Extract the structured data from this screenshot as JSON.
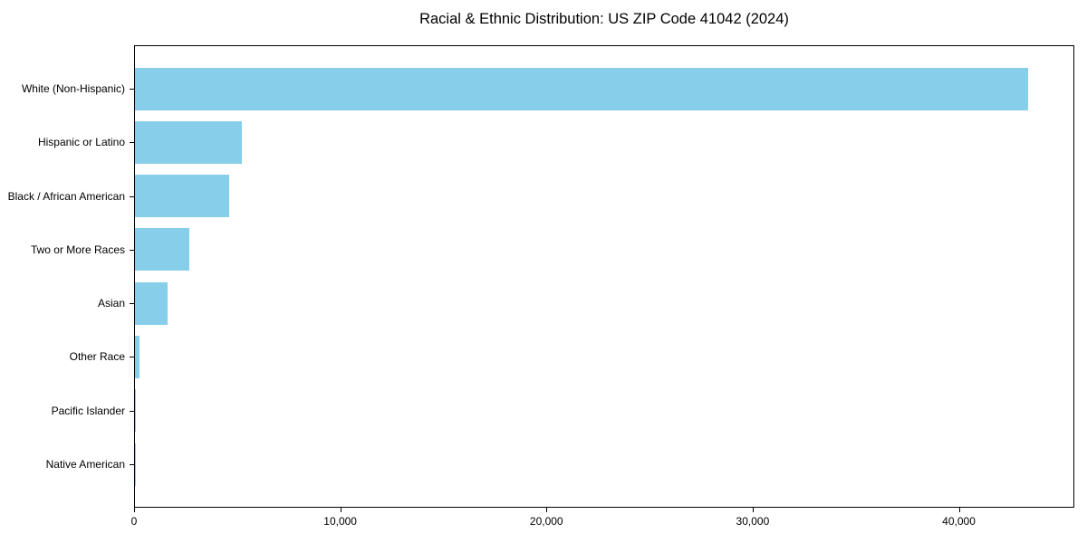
{
  "chart_data": {
    "type": "bar",
    "orientation": "horizontal",
    "title": "Racial & Ethnic Distribution: US ZIP Code 41042 (2024)",
    "categories": [
      "White (Non-Hispanic)",
      "Hispanic or Latino",
      "Black / African American",
      "Two or More Races",
      "Asian",
      "Other Race",
      "Pacific Islander",
      "Native American"
    ],
    "values": [
      43400,
      5180,
      4560,
      2640,
      1580,
      220,
      40,
      15
    ],
    "bar_color": "#87CEEB",
    "xlim": [
      0,
      45600
    ],
    "x_ticks": [
      0,
      10000,
      20000,
      30000,
      40000
    ],
    "x_tick_labels": [
      "0",
      "10,000",
      "20,000",
      "30,000",
      "40,000"
    ],
    "xlabel": "",
    "ylabel": "",
    "grid": false,
    "legend": null,
    "background_color": "#ffffff",
    "axis_color": "#000000"
  }
}
